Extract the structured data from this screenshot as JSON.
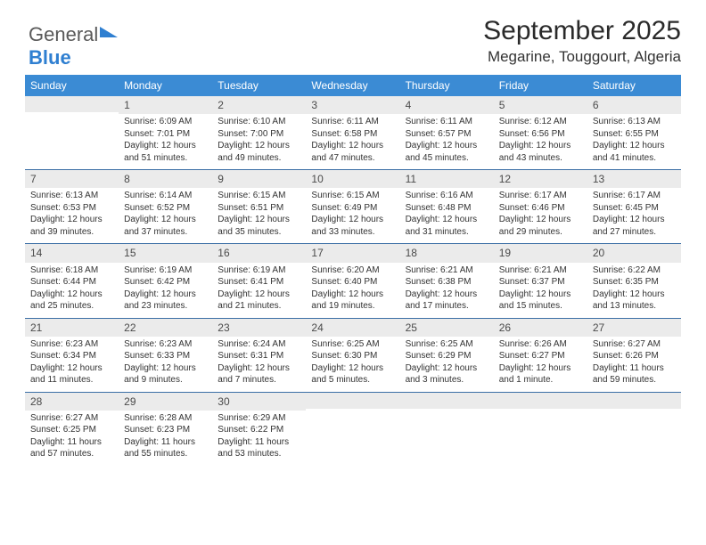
{
  "logo": {
    "part1": "General",
    "part2": "Blue"
  },
  "title": "September 2025",
  "subtitle": "Megarine, Touggourt, Algeria",
  "colors": {
    "header_bg": "#3b8bd4",
    "header_fg": "#ffffff",
    "daynum_bg": "#ebebeb",
    "rule": "#3b6fa5",
    "logo_accent": "#2f7fd1"
  },
  "day_names": [
    "Sunday",
    "Monday",
    "Tuesday",
    "Wednesday",
    "Thursday",
    "Friday",
    "Saturday"
  ],
  "weeks": [
    [
      {
        "n": "",
        "sr": "",
        "ss": "",
        "dl": ""
      },
      {
        "n": "1",
        "sr": "Sunrise: 6:09 AM",
        "ss": "Sunset: 7:01 PM",
        "dl": "Daylight: 12 hours and 51 minutes."
      },
      {
        "n": "2",
        "sr": "Sunrise: 6:10 AM",
        "ss": "Sunset: 7:00 PM",
        "dl": "Daylight: 12 hours and 49 minutes."
      },
      {
        "n": "3",
        "sr": "Sunrise: 6:11 AM",
        "ss": "Sunset: 6:58 PM",
        "dl": "Daylight: 12 hours and 47 minutes."
      },
      {
        "n": "4",
        "sr": "Sunrise: 6:11 AM",
        "ss": "Sunset: 6:57 PM",
        "dl": "Daylight: 12 hours and 45 minutes."
      },
      {
        "n": "5",
        "sr": "Sunrise: 6:12 AM",
        "ss": "Sunset: 6:56 PM",
        "dl": "Daylight: 12 hours and 43 minutes."
      },
      {
        "n": "6",
        "sr": "Sunrise: 6:13 AM",
        "ss": "Sunset: 6:55 PM",
        "dl": "Daylight: 12 hours and 41 minutes."
      }
    ],
    [
      {
        "n": "7",
        "sr": "Sunrise: 6:13 AM",
        "ss": "Sunset: 6:53 PM",
        "dl": "Daylight: 12 hours and 39 minutes."
      },
      {
        "n": "8",
        "sr": "Sunrise: 6:14 AM",
        "ss": "Sunset: 6:52 PM",
        "dl": "Daylight: 12 hours and 37 minutes."
      },
      {
        "n": "9",
        "sr": "Sunrise: 6:15 AM",
        "ss": "Sunset: 6:51 PM",
        "dl": "Daylight: 12 hours and 35 minutes."
      },
      {
        "n": "10",
        "sr": "Sunrise: 6:15 AM",
        "ss": "Sunset: 6:49 PM",
        "dl": "Daylight: 12 hours and 33 minutes."
      },
      {
        "n": "11",
        "sr": "Sunrise: 6:16 AM",
        "ss": "Sunset: 6:48 PM",
        "dl": "Daylight: 12 hours and 31 minutes."
      },
      {
        "n": "12",
        "sr": "Sunrise: 6:17 AM",
        "ss": "Sunset: 6:46 PM",
        "dl": "Daylight: 12 hours and 29 minutes."
      },
      {
        "n": "13",
        "sr": "Sunrise: 6:17 AM",
        "ss": "Sunset: 6:45 PM",
        "dl": "Daylight: 12 hours and 27 minutes."
      }
    ],
    [
      {
        "n": "14",
        "sr": "Sunrise: 6:18 AM",
        "ss": "Sunset: 6:44 PM",
        "dl": "Daylight: 12 hours and 25 minutes."
      },
      {
        "n": "15",
        "sr": "Sunrise: 6:19 AM",
        "ss": "Sunset: 6:42 PM",
        "dl": "Daylight: 12 hours and 23 minutes."
      },
      {
        "n": "16",
        "sr": "Sunrise: 6:19 AM",
        "ss": "Sunset: 6:41 PM",
        "dl": "Daylight: 12 hours and 21 minutes."
      },
      {
        "n": "17",
        "sr": "Sunrise: 6:20 AM",
        "ss": "Sunset: 6:40 PM",
        "dl": "Daylight: 12 hours and 19 minutes."
      },
      {
        "n": "18",
        "sr": "Sunrise: 6:21 AM",
        "ss": "Sunset: 6:38 PM",
        "dl": "Daylight: 12 hours and 17 minutes."
      },
      {
        "n": "19",
        "sr": "Sunrise: 6:21 AM",
        "ss": "Sunset: 6:37 PM",
        "dl": "Daylight: 12 hours and 15 minutes."
      },
      {
        "n": "20",
        "sr": "Sunrise: 6:22 AM",
        "ss": "Sunset: 6:35 PM",
        "dl": "Daylight: 12 hours and 13 minutes."
      }
    ],
    [
      {
        "n": "21",
        "sr": "Sunrise: 6:23 AM",
        "ss": "Sunset: 6:34 PM",
        "dl": "Daylight: 12 hours and 11 minutes."
      },
      {
        "n": "22",
        "sr": "Sunrise: 6:23 AM",
        "ss": "Sunset: 6:33 PM",
        "dl": "Daylight: 12 hours and 9 minutes."
      },
      {
        "n": "23",
        "sr": "Sunrise: 6:24 AM",
        "ss": "Sunset: 6:31 PM",
        "dl": "Daylight: 12 hours and 7 minutes."
      },
      {
        "n": "24",
        "sr": "Sunrise: 6:25 AM",
        "ss": "Sunset: 6:30 PM",
        "dl": "Daylight: 12 hours and 5 minutes."
      },
      {
        "n": "25",
        "sr": "Sunrise: 6:25 AM",
        "ss": "Sunset: 6:29 PM",
        "dl": "Daylight: 12 hours and 3 minutes."
      },
      {
        "n": "26",
        "sr": "Sunrise: 6:26 AM",
        "ss": "Sunset: 6:27 PM",
        "dl": "Daylight: 12 hours and 1 minute."
      },
      {
        "n": "27",
        "sr": "Sunrise: 6:27 AM",
        "ss": "Sunset: 6:26 PM",
        "dl": "Daylight: 11 hours and 59 minutes."
      }
    ],
    [
      {
        "n": "28",
        "sr": "Sunrise: 6:27 AM",
        "ss": "Sunset: 6:25 PM",
        "dl": "Daylight: 11 hours and 57 minutes."
      },
      {
        "n": "29",
        "sr": "Sunrise: 6:28 AM",
        "ss": "Sunset: 6:23 PM",
        "dl": "Daylight: 11 hours and 55 minutes."
      },
      {
        "n": "30",
        "sr": "Sunrise: 6:29 AM",
        "ss": "Sunset: 6:22 PM",
        "dl": "Daylight: 11 hours and 53 minutes."
      },
      {
        "n": "",
        "sr": "",
        "ss": "",
        "dl": ""
      },
      {
        "n": "",
        "sr": "",
        "ss": "",
        "dl": ""
      },
      {
        "n": "",
        "sr": "",
        "ss": "",
        "dl": ""
      },
      {
        "n": "",
        "sr": "",
        "ss": "",
        "dl": ""
      }
    ]
  ]
}
